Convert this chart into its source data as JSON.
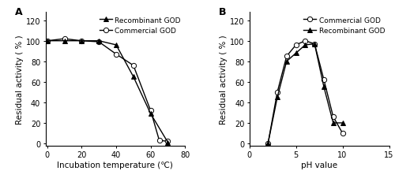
{
  "panel_A": {
    "recombinant_GOD": {
      "x": [
        0,
        10,
        20,
        30,
        40,
        50,
        60,
        70
      ],
      "y": [
        100,
        100,
        100,
        100,
        96,
        65,
        29,
        1
      ]
    },
    "commercial_GOD": {
      "x": [
        0,
        10,
        20,
        30,
        40,
        50,
        60,
        65,
        70
      ],
      "y": [
        100,
        102,
        100,
        99,
        87,
        76,
        32,
        3,
        2
      ]
    },
    "xlabel": "Incubation temperature (℃)",
    "ylabel": "Residual activity ( % )",
    "xlim": [
      -1,
      80
    ],
    "ylim": [
      -2,
      128
    ],
    "xticks": [
      0,
      20,
      40,
      60,
      80
    ],
    "yticks": [
      0,
      20,
      40,
      60,
      80,
      100,
      120
    ],
    "legend_recombinant": "Recombinant GOD",
    "legend_commercial": "Commercial GOD",
    "label": "A"
  },
  "panel_B": {
    "recombinant_GOD": {
      "x": [
        2,
        3,
        4,
        5,
        6,
        7,
        8,
        9,
        10
      ],
      "y": [
        0,
        45,
        80,
        88,
        96,
        97,
        55,
        20,
        20
      ]
    },
    "commercial_GOD": {
      "x": [
        2,
        3,
        4,
        5,
        6,
        7,
        8,
        9,
        10
      ],
      "y": [
        0,
        50,
        85,
        96,
        100,
        97,
        62,
        26,
        10
      ]
    },
    "xlabel": "pH value",
    "ylabel": "Residual activity ( % )",
    "xlim": [
      0,
      15
    ],
    "ylim": [
      -2,
      128
    ],
    "xticks": [
      0,
      5,
      10,
      15
    ],
    "yticks": [
      0,
      20,
      40,
      60,
      80,
      100,
      120
    ],
    "legend_commercial": "Commercial GOD",
    "legend_recombinant": "Recombinant GOD",
    "label": "B"
  },
  "line_color": "#000000",
  "marker_recombinant": "^",
  "marker_commercial": "o",
  "markerfacecolor_recombinant": "#000000",
  "markerfacecolor_commercial": "#ffffff",
  "markersize": 4.5,
  "linewidth": 1.0,
  "fontsize_label": 7.5,
  "fontsize_tick": 7,
  "fontsize_legend": 6.5,
  "fontsize_panel": 9
}
